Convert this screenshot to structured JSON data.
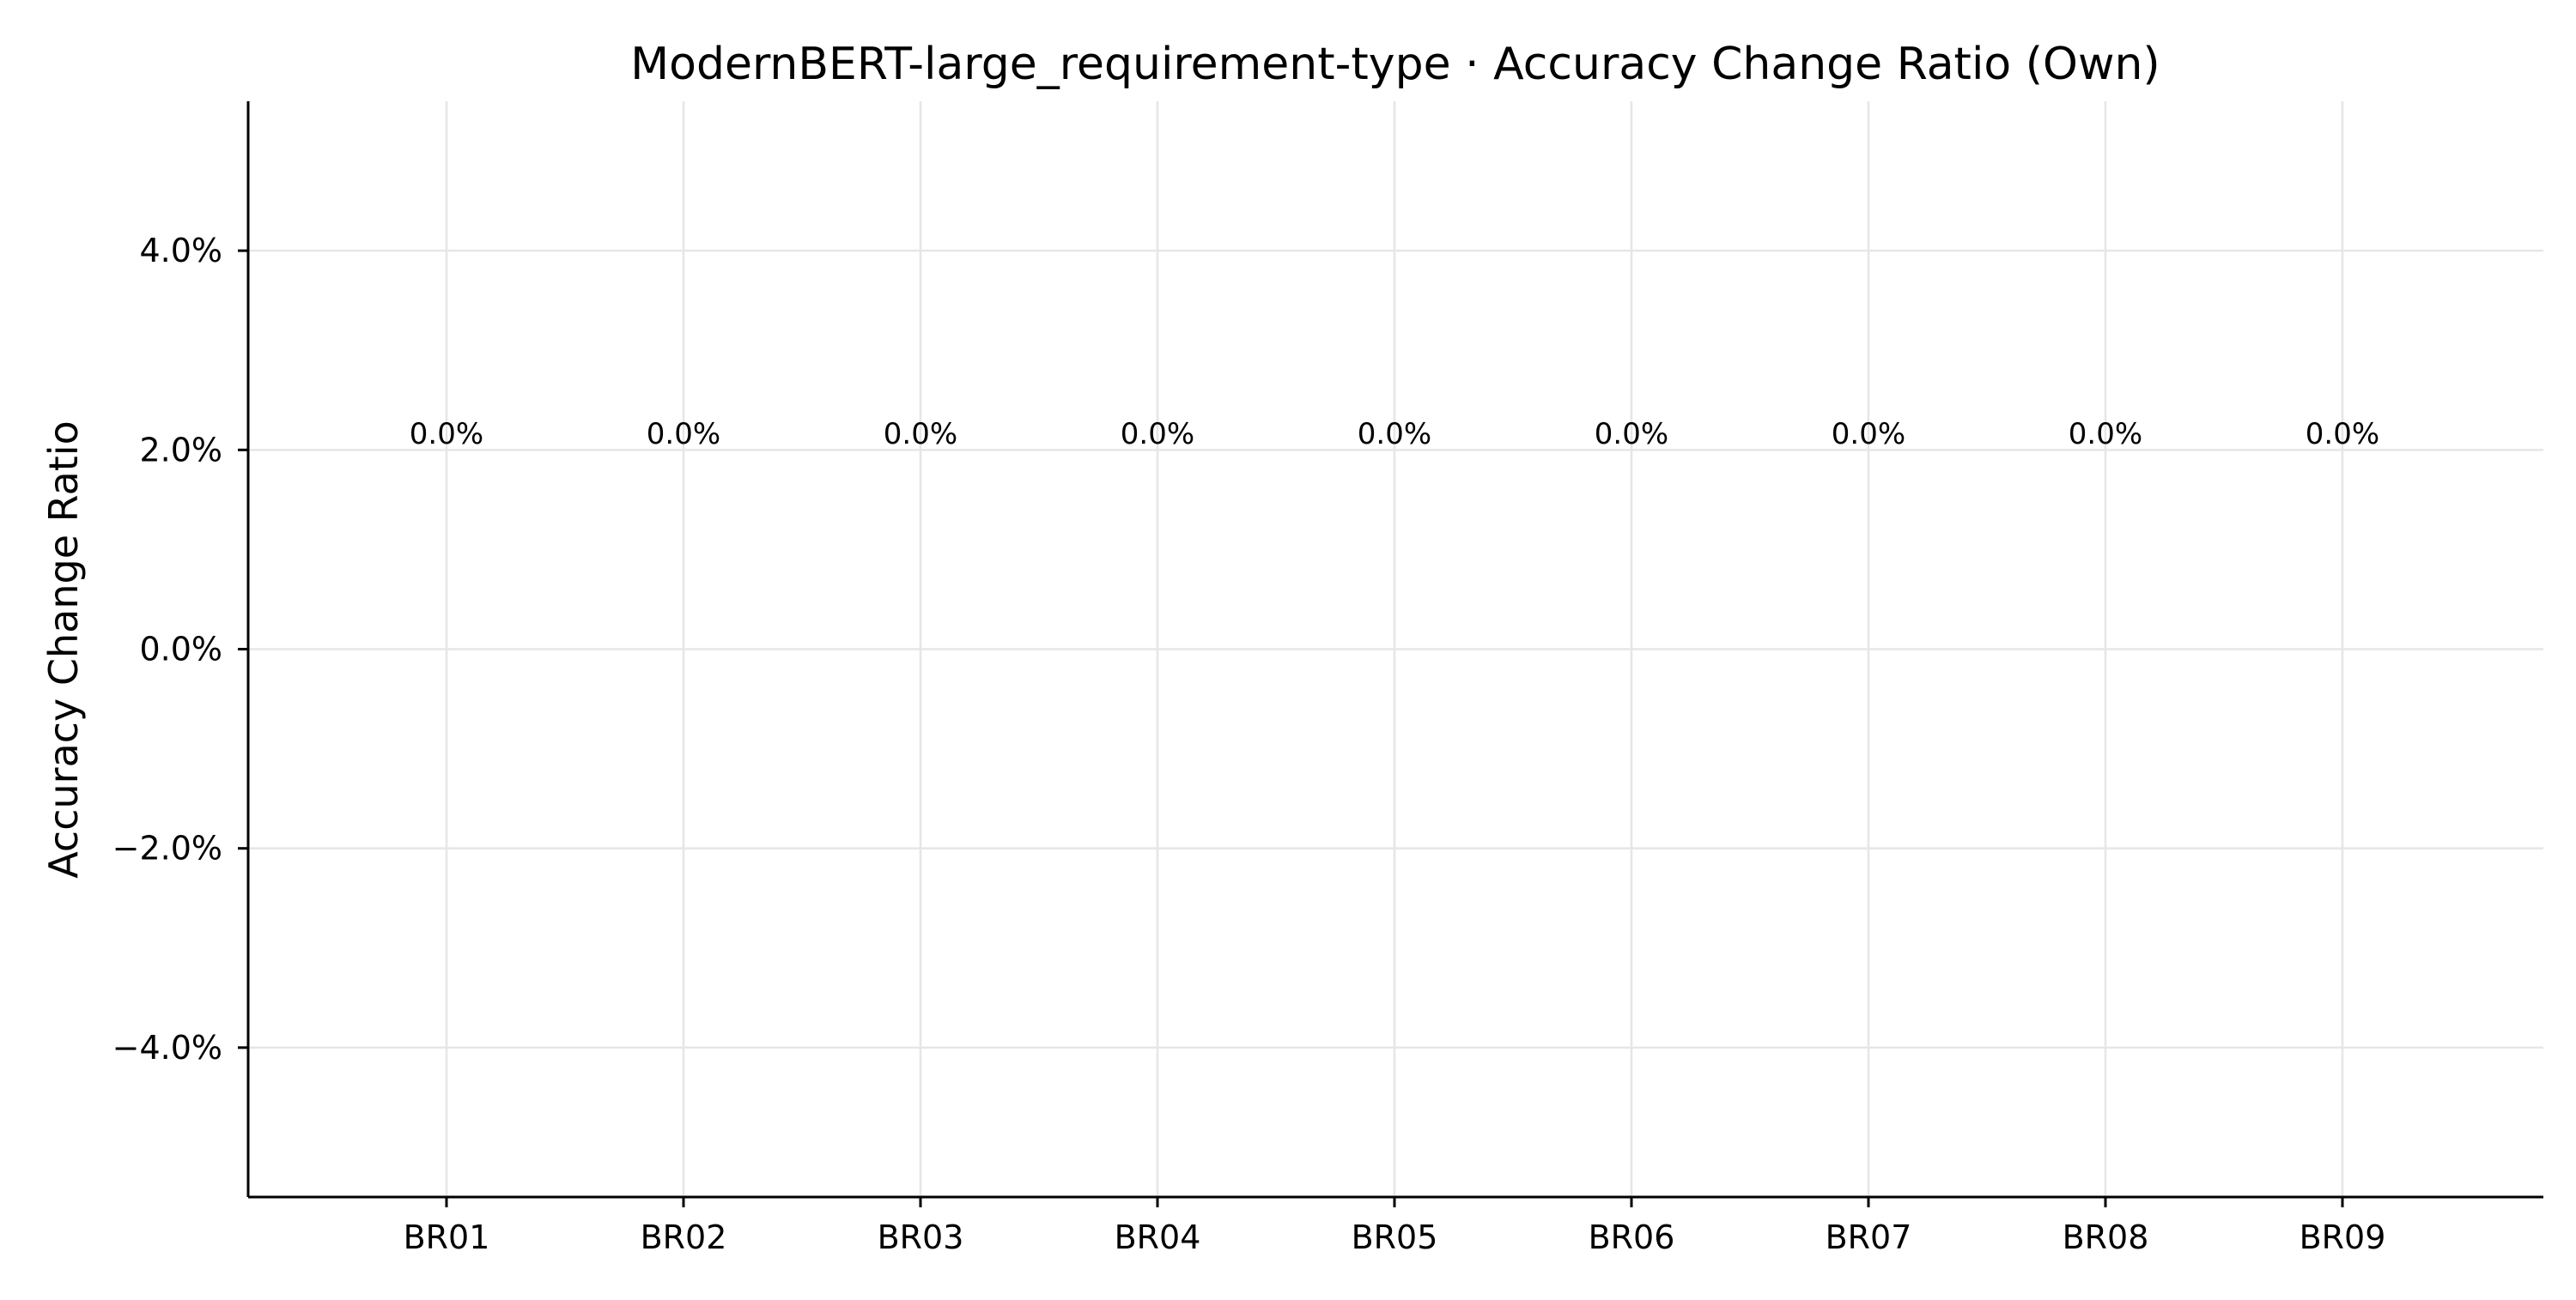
{
  "chart_data": {
    "type": "bar",
    "title": "ModernBERT-large_requirement-type · Accuracy Change Ratio (Own)",
    "xlabel": "",
    "ylabel": "Accuracy Change Ratio",
    "categories": [
      "BR01",
      "BR02",
      "BR03",
      "BR04",
      "BR05",
      "BR06",
      "BR07",
      "BR08",
      "BR09"
    ],
    "values": [
      0.0,
      0.0,
      0.0,
      0.0,
      0.0,
      0.0,
      0.0,
      0.0,
      0.0
    ],
    "data_labels": [
      "0.0%",
      "0.0%",
      "0.0%",
      "0.0%",
      "0.0%",
      "0.0%",
      "0.0%",
      "0.0%",
      "0.0%"
    ],
    "ylim": [
      -5.5,
      5.5
    ],
    "yticks": [
      -4,
      -2,
      0,
      2,
      4
    ],
    "ytick_labels": [
      "−4.0%",
      "−2.0%",
      "0.0%",
      "2.0%",
      "4.0%"
    ],
    "grid": true,
    "bar_color": "#4c72b0"
  }
}
